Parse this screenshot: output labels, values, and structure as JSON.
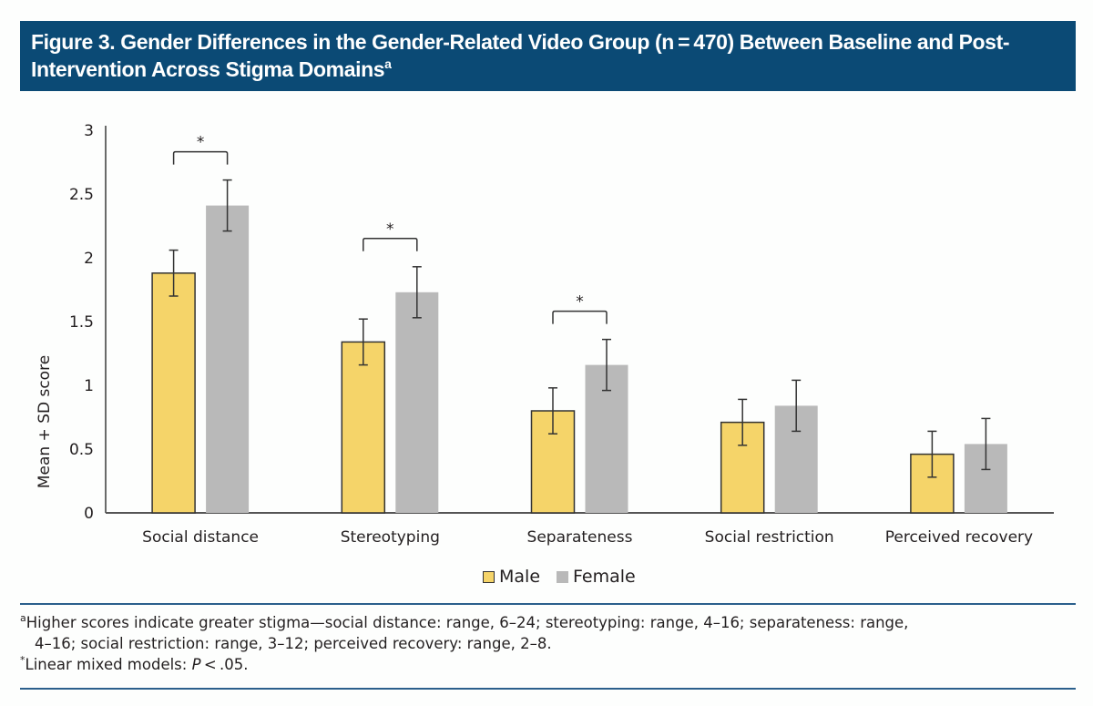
{
  "figure": {
    "title": "Figure 3. Gender Differences in the Gender-Related Video Group (n = 470) Between Baseline and Post-Intervention Across Stigma Domains",
    "title_superscript": "a",
    "header_color": "#0b4a75"
  },
  "chart_data": {
    "type": "bar",
    "title": "Gender Differences in the Gender-Related Video Group (n = 470) Between Baseline and Post-Intervention Across Stigma Domains",
    "xlabel": "",
    "ylabel": "Mean + SD score",
    "ylim": [
      0,
      3
    ],
    "yticks": [
      0,
      0.5,
      1,
      1.5,
      2,
      2.5,
      3
    ],
    "ytick_labels": [
      "0",
      "0.5",
      "1",
      "1.5",
      "2",
      "2.5",
      "3"
    ],
    "grid": false,
    "legend_position": "bottom-center",
    "categories": [
      "Social distance",
      "Stereotyping",
      "Separateness",
      "Social restriction",
      "Perceived recovery"
    ],
    "series": [
      {
        "name": "Male",
        "color": "#f5d469",
        "outline": "#333333",
        "values": [
          1.88,
          1.34,
          0.8,
          0.71,
          0.46
        ],
        "error": [
          0.18,
          0.18,
          0.18,
          0.18,
          0.18
        ]
      },
      {
        "name": "Female",
        "color": "#b9b9b9",
        "values": [
          2.41,
          1.73,
          1.16,
          0.84,
          0.54
        ],
        "error": [
          0.2,
          0.2,
          0.2,
          0.2,
          0.2
        ]
      }
    ],
    "significance": [
      {
        "category": "Social distance",
        "marker": "*"
      },
      {
        "category": "Stereotyping",
        "marker": "*"
      },
      {
        "category": "Separateness",
        "marker": "*"
      }
    ]
  },
  "legend": {
    "male_label": "Male",
    "female_label": "Female"
  },
  "footnotes": {
    "a_marker": "a",
    "a_line1": "Higher scores indicate greater stigma—social distance: range, 6–24; stereotyping: range, 4–16; separateness: range,",
    "a_line2": "4–16; social restriction: range, 3–12; perceived recovery: range, 2–8.",
    "star_marker": "*",
    "star_text_prefix": "Linear mixed models: ",
    "star_text_p": "P",
    "star_text_suffix": " < .05."
  }
}
